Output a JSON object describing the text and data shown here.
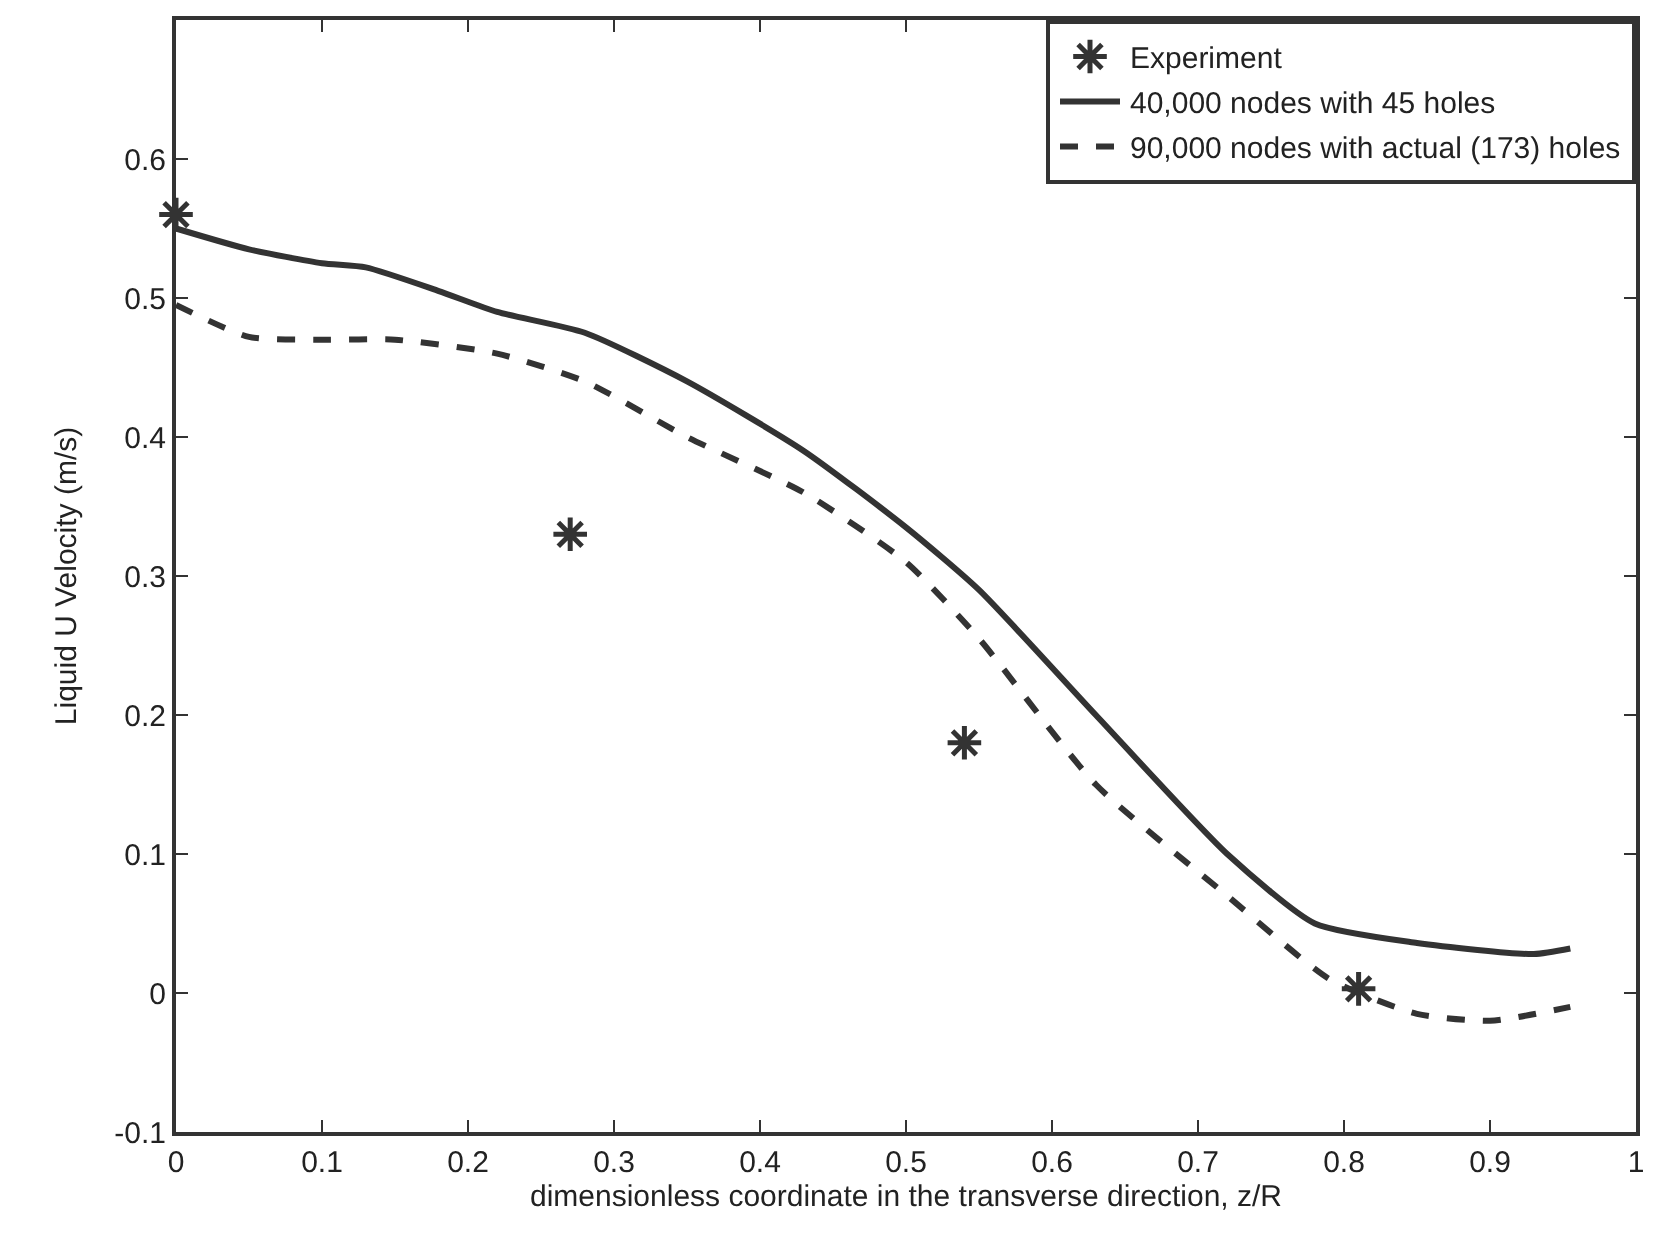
{
  "chart_data": {
    "type": "line",
    "xlabel": "dimensionless coordinate in the transverse direction, z/R",
    "ylabel": "Liquid U Velocity (m/s)",
    "xlim": [
      0,
      1
    ],
    "ylim": [
      -0.1,
      0.7
    ],
    "xticks": [
      0,
      0.1,
      0.2,
      0.3,
      0.4,
      0.5,
      0.6,
      0.7,
      0.8,
      0.9,
      1
    ],
    "yticks": [
      -0.1,
      0,
      0.1,
      0.2,
      0.3,
      0.4,
      0.5,
      0.6
    ],
    "grid": false,
    "legend": "top right",
    "series": [
      {
        "name": "Experiment",
        "type": "scatter",
        "marker": "cross",
        "color": "#333333",
        "x": [
          0,
          0.27,
          0.54,
          0.81
        ],
        "values": [
          0.56,
          0.33,
          0.18,
          0.003
        ]
      },
      {
        "name": "40,000 nodes with 45 holes",
        "line_style": "solid",
        "color": "#333333",
        "x": [
          0,
          0.05,
          0.1,
          0.13,
          0.18,
          0.22,
          0.28,
          0.35,
          0.43,
          0.5,
          0.55,
          0.63,
          0.72,
          0.78,
          0.85,
          0.93,
          0.955
        ],
        "values": [
          0.55,
          0.535,
          0.525,
          0.522,
          0.505,
          0.49,
          0.475,
          0.44,
          0.39,
          0.335,
          0.29,
          0.2,
          0.1,
          0.05,
          0.036,
          0.028,
          0.032
        ]
      },
      {
        "name": "90,000 nodes with actual (173) holes",
        "line_style": "dashed",
        "color": "#333333",
        "x": [
          0,
          0.05,
          0.1,
          0.15,
          0.22,
          0.28,
          0.35,
          0.43,
          0.5,
          0.55,
          0.63,
          0.72,
          0.79,
          0.85,
          0.9,
          0.955
        ],
        "values": [
          0.495,
          0.472,
          0.47,
          0.47,
          0.46,
          0.44,
          0.4,
          0.36,
          0.31,
          0.255,
          0.15,
          0.07,
          0.01,
          -0.015,
          -0.02,
          -0.01
        ]
      }
    ]
  }
}
